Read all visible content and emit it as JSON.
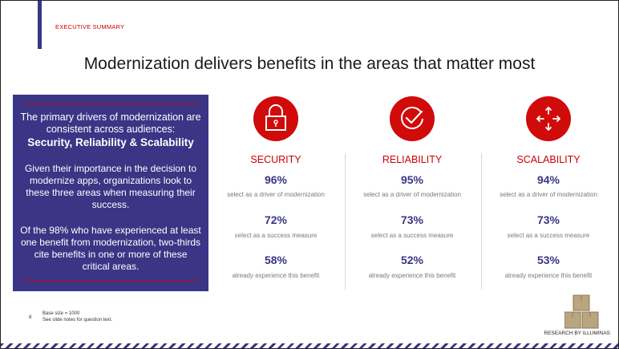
{
  "header": {
    "section_label": "EXECUTIVE SUMMARY",
    "title": "Modernization delivers benefits in the areas that matter most"
  },
  "summary": {
    "intro": "The primary drivers of modernization are consistent across audiences:",
    "highlight": "Security, Reliability & Scalability",
    "paragraph2": "Given their importance in the decision to modernize apps, organizations look to these three areas when measuring their success.",
    "paragraph3": "Of the 98% who have experienced at least one benefit from modernization, two-thirds cite benefits in one or more of these critical areas."
  },
  "columns": [
    {
      "category": "SECURITY",
      "icon": "lock-icon",
      "stats": [
        {
          "value": "96%",
          "label": "select as a driver of modernization"
        },
        {
          "value": "72%",
          "label": "select as a success measure"
        },
        {
          "value": "58%",
          "label": "already experience this benefit"
        }
      ]
    },
    {
      "category": "RELIABILITY",
      "icon": "checkmark-icon",
      "stats": [
        {
          "value": "95%",
          "label": "select as a driver of modernization"
        },
        {
          "value": "73%",
          "label": "select as a success measure"
        },
        {
          "value": "52%",
          "label": "already experience this benefit"
        }
      ]
    },
    {
      "category": "SCALABILITY",
      "icon": "expand-arrows-icon",
      "stats": [
        {
          "value": "94%",
          "label": "select as a driver of modernization"
        },
        {
          "value": "73%",
          "label": "select as a success measure"
        },
        {
          "value": "53%",
          "label": "already experience this benefit"
        }
      ]
    }
  ],
  "footer": {
    "page_number": "8",
    "base_size": "Base size = 1000",
    "notes": "See slide notes for question text.",
    "brand": "RESEARCH BY ILLUMINAS"
  },
  "colors": {
    "accent": "#3a3585",
    "red": "#d10a0a"
  }
}
